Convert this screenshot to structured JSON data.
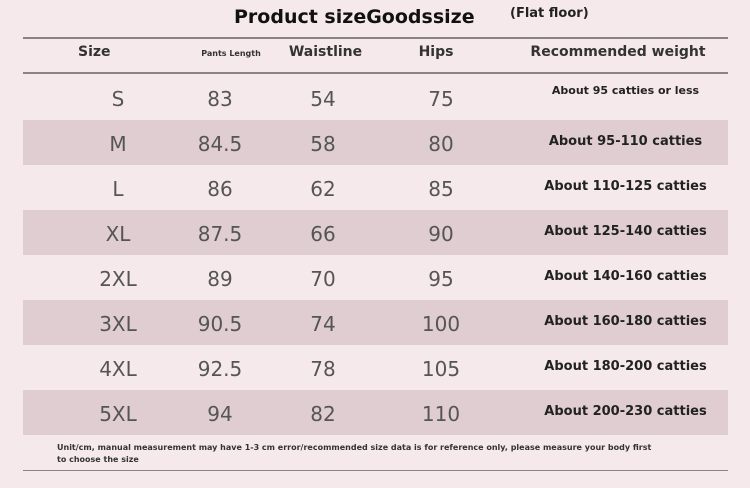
{
  "title": {
    "main": "Product sizeGoodssize",
    "sub": "(Flat floor)"
  },
  "columns": {
    "size": "Size",
    "pants_length": "Pants Length",
    "waistline": "Waistline",
    "hips": "Hips",
    "weight": "Recommended weight"
  },
  "rows": [
    {
      "size": "S",
      "length": "83",
      "waist": "54",
      "hips": "75",
      "weight": "About 95 catties or less"
    },
    {
      "size": "M",
      "length": "84.5",
      "waist": "58",
      "hips": "80",
      "weight": "About 95-110 catties"
    },
    {
      "size": "L",
      "length": "86",
      "waist": "62",
      "hips": "85",
      "weight": "About 110-125 catties"
    },
    {
      "size": "XL",
      "length": "87.5",
      "waist": "66",
      "hips": "90",
      "weight": "About 125-140 catties"
    },
    {
      "size": "2XL",
      "length": "89",
      "waist": "70",
      "hips": "95",
      "weight": "About 140-160 catties"
    },
    {
      "size": "3XL",
      "length": "90.5",
      "waist": "74",
      "hips": "100",
      "weight": "About 160-180 catties"
    },
    {
      "size": "4XL",
      "length": "92.5",
      "waist": "78",
      "hips": "105",
      "weight": "About 180-200 catties"
    },
    {
      "size": "5XL",
      "length": "94",
      "waist": "82",
      "hips": "110",
      "weight": "About 200-230 catties"
    }
  ],
  "note": "Unit/cm, manual measurement may have 1-3 cm error/recommended size data is for reference only, please measure your body first to choose the size",
  "colors": {
    "background": "#f6e9ec",
    "row_shade": "#dfcdd2",
    "rule": "#8a8285"
  }
}
